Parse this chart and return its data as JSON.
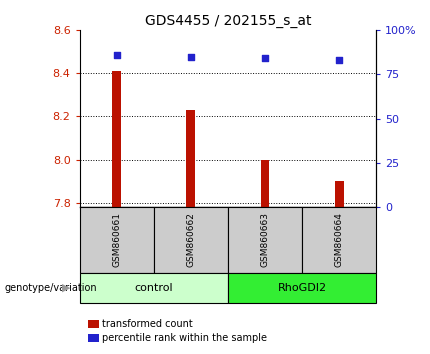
{
  "title": "GDS4455 / 202155_s_at",
  "samples": [
    "GSM860661",
    "GSM860662",
    "GSM860663",
    "GSM860664"
  ],
  "bar_values": [
    8.41,
    8.23,
    8.0,
    7.9
  ],
  "bar_base": 7.78,
  "percentile_values": [
    86,
    85,
    84,
    83
  ],
  "ylim_left": [
    7.78,
    8.6
  ],
  "ylim_right": [
    0,
    100
  ],
  "yticks_left": [
    7.8,
    8.0,
    8.2,
    8.4,
    8.6
  ],
  "yticks_right": [
    0,
    25,
    50,
    75,
    100
  ],
  "bar_color": "#bb1100",
  "marker_color": "#2222cc",
  "grid_color": "#000000",
  "left_tick_color": "#cc2200",
  "right_tick_color": "#2222cc",
  "control_bg": "#ccffcc",
  "rho_bg": "#33ee33",
  "sample_bg": "#cccccc",
  "legend_red_label": "transformed count",
  "legend_blue_label": "percentile rank within the sample",
  "genotype_label": "genotype/variation"
}
